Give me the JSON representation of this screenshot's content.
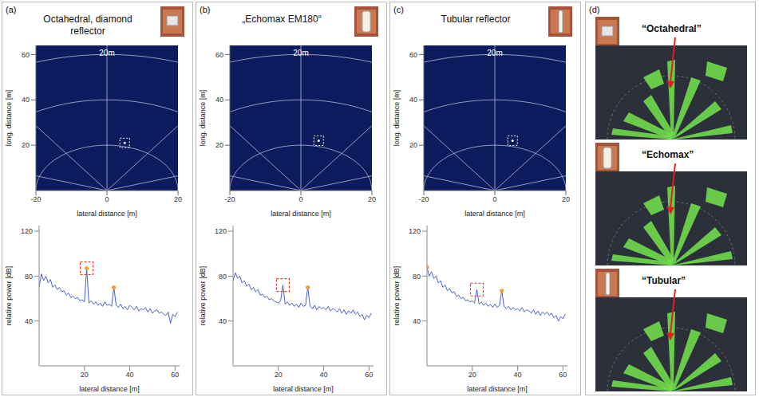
{
  "chart_data": [
    {
      "panel": "(a)",
      "title": "Octahedral, diamond reflector",
      "type": "scatter",
      "annotation": "20m",
      "xlabel": "lateral distance [m]",
      "ylabel": "long. distance [m]",
      "xlim": [
        -20,
        20
      ],
      "xticks": [
        -20,
        0,
        20
      ],
      "ylim": [
        0,
        64
      ],
      "yticks": [
        20,
        40,
        60
      ],
      "range_rings": [
        20,
        40,
        60
      ],
      "grid": true,
      "x": [
        5
      ],
      "values": [
        21
      ],
      "marker": "square",
      "color": "#ffffff"
    },
    {
      "type": "line",
      "xlabel": "lateral distance [m]",
      "ylabel": "relative power [dB]",
      "xlim": [
        0,
        62
      ],
      "xticks": [
        20,
        40,
        60
      ],
      "ylim": [
        0,
        125
      ],
      "yticks": [
        40,
        80,
        120
      ],
      "color": "#4a5fd0",
      "x": [
        0,
        1,
        2,
        3,
        4,
        5,
        6,
        7,
        8,
        9,
        10,
        11,
        12,
        13,
        14,
        15,
        16,
        17,
        18,
        19,
        20,
        21,
        22,
        23,
        24,
        25,
        26,
        27,
        28,
        29,
        30,
        31,
        32,
        33,
        34,
        35,
        36,
        37,
        38,
        39,
        40,
        41,
        42,
        43,
        44,
        45,
        46,
        47,
        48,
        49,
        50,
        51,
        52,
        53,
        54,
        55,
        56,
        57,
        58,
        59,
        60,
        61
      ],
      "values": [
        70,
        82,
        76,
        80,
        74,
        77,
        70,
        72,
        68,
        70,
        66,
        67,
        63,
        65,
        61,
        62,
        60,
        61,
        58,
        59,
        57,
        87,
        56,
        58,
        55,
        57,
        54,
        56,
        53,
        57,
        54,
        55,
        53,
        70,
        54,
        52,
        55,
        51,
        53,
        50,
        54,
        52,
        50,
        53,
        49,
        51,
        50,
        52,
        48,
        51,
        47,
        49,
        50,
        47,
        48,
        46,
        45,
        48,
        38,
        46,
        44,
        48
      ],
      "peaks": {
        "x": [
          21,
          33
        ],
        "values": [
          87,
          70
        ],
        "color": "#f0a030"
      },
      "target": {
        "x": 21,
        "value": 87,
        "color": "#e03c28"
      }
    },
    {
      "panel": "(b)",
      "title": "„Echomax EM180“",
      "type": "scatter",
      "annotation": "20m",
      "xlabel": "lateral distance [m]",
      "ylabel": "long. distance [m]",
      "xlim": [
        -20,
        20
      ],
      "xticks": [
        -20,
        0,
        20
      ],
      "ylim": [
        0,
        64
      ],
      "yticks": [
        20,
        40,
        60
      ],
      "range_rings": [
        20,
        40,
        60
      ],
      "grid": true,
      "x": [
        5
      ],
      "values": [
        22
      ],
      "marker": "square",
      "color": "#ffffff"
    },
    {
      "type": "line",
      "xlabel": "lateral distance [m]",
      "ylabel": "relative power [dB]",
      "xlim": [
        0,
        62
      ],
      "xticks": [
        20,
        40,
        60
      ],
      "ylim": [
        0,
        125
      ],
      "yticks": [
        40,
        80,
        120
      ],
      "color": "#4a5fd0",
      "x": [
        0,
        1,
        2,
        3,
        4,
        5,
        6,
        7,
        8,
        9,
        10,
        11,
        12,
        13,
        14,
        15,
        16,
        17,
        18,
        19,
        20,
        21,
        22,
        23,
        24,
        25,
        26,
        27,
        28,
        29,
        30,
        31,
        32,
        33,
        34,
        35,
        36,
        37,
        38,
        39,
        40,
        41,
        42,
        43,
        44,
        45,
        46,
        47,
        48,
        49,
        50,
        51,
        52,
        53,
        54,
        55,
        56,
        57,
        58,
        59,
        60,
        61
      ],
      "values": [
        76,
        83,
        78,
        80,
        74,
        76,
        71,
        73,
        68,
        70,
        66,
        68,
        63,
        64,
        61,
        62,
        59,
        60,
        58,
        57,
        56,
        58,
        72,
        55,
        57,
        54,
        56,
        53,
        55,
        52,
        56,
        53,
        54,
        70,
        53,
        51,
        54,
        50,
        53,
        51,
        52,
        50,
        53,
        49,
        51,
        50,
        48,
        51,
        47,
        50,
        46,
        49,
        47,
        50,
        46,
        48,
        44,
        46,
        41,
        45,
        43,
        47
      ],
      "peaks": {
        "x": [
          33
        ],
        "values": [
          70
        ],
        "color": "#f0a030"
      },
      "target": {
        "x": 22,
        "value": 72,
        "color": "#e03c28"
      }
    },
    {
      "panel": "(c)",
      "title": "Tubular reflector",
      "type": "scatter",
      "annotation": "20m",
      "xlabel": "lateral distance [m]",
      "ylabel": "long. distance [m]",
      "xlim": [
        -20,
        20
      ],
      "xticks": [
        -20,
        0,
        20
      ],
      "ylim": [
        0,
        64
      ],
      "yticks": [
        20,
        40,
        60
      ],
      "range_rings": [
        20,
        40,
        60
      ],
      "grid": true,
      "x": [
        5
      ],
      "values": [
        22
      ],
      "marker": "square",
      "color": "#ffffff"
    },
    {
      "type": "line",
      "xlabel": "lateral distance [m]",
      "ylabel": "relative power [dB]",
      "xlim": [
        0,
        62
      ],
      "xticks": [
        20,
        40,
        60
      ],
      "ylim": [
        0,
        125
      ],
      "yticks": [
        40,
        80,
        120
      ],
      "color": "#4a5fd0",
      "x": [
        0,
        1,
        2,
        3,
        4,
        5,
        6,
        7,
        8,
        9,
        10,
        11,
        12,
        13,
        14,
        15,
        16,
        17,
        18,
        19,
        20,
        21,
        22,
        23,
        24,
        25,
        26,
        27,
        28,
        29,
        30,
        31,
        32,
        33,
        34,
        35,
        36,
        37,
        38,
        39,
        40,
        41,
        42,
        43,
        44,
        45,
        46,
        47,
        48,
        49,
        50,
        51,
        52,
        53,
        54,
        55,
        56,
        57,
        58,
        59,
        60,
        61
      ],
      "values": [
        88,
        80,
        84,
        78,
        80,
        74,
        76,
        70,
        72,
        67,
        69,
        65,
        66,
        62,
        63,
        60,
        61,
        58,
        59,
        57,
        58,
        56,
        68,
        55,
        57,
        54,
        56,
        53,
        55,
        52,
        55,
        52,
        54,
        67,
        53,
        51,
        53,
        50,
        52,
        50,
        51,
        49,
        52,
        48,
        50,
        49,
        47,
        50,
        46,
        49,
        45,
        48,
        46,
        48,
        45,
        47,
        43,
        45,
        40,
        44,
        42,
        46
      ],
      "peaks": {
        "x": [
          0,
          33
        ],
        "values": [
          88,
          67
        ],
        "color": "#f0a030"
      },
      "target": {
        "x": 22,
        "value": 68,
        "color": "#e03c28"
      }
    }
  ],
  "panel_d": {
    "letter": "(d)",
    "items": [
      "“Octahedral”",
      "“Echomax”",
      "“Tubular”"
    ]
  }
}
